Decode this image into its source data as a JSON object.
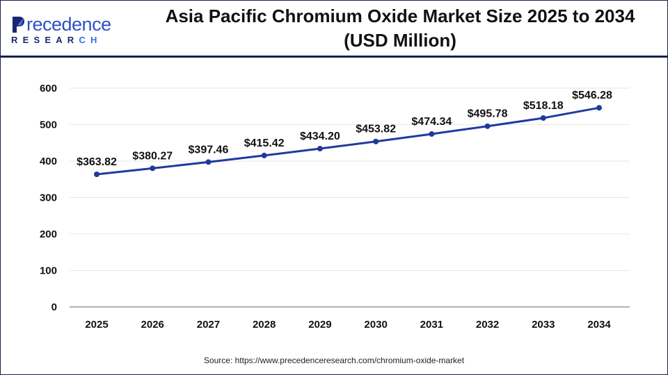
{
  "header": {
    "logo_text": "Precedence RESEARCH",
    "title_line1": "Asia Pacific Chromium Oxide Market Size 2025 to 2034",
    "title_line2": "(USD Million)"
  },
  "source": "Source: https://www.precedenceresearch.com/chromium-oxide-market",
  "colors": {
    "line": "#1f3a9e",
    "frame": "#1a1f4e",
    "grid": "#e6e6e6"
  },
  "chart_data": {
    "type": "line",
    "title": "Asia Pacific Chromium Oxide Market Size 2025 to 2034 (USD Million)",
    "categories": [
      "2025",
      "2026",
      "2027",
      "2028",
      "2029",
      "2030",
      "2031",
      "2032",
      "2033",
      "2034"
    ],
    "values": [
      363.82,
      380.27,
      397.46,
      415.42,
      434.2,
      453.82,
      474.34,
      495.78,
      518.18,
      546.28
    ],
    "data_labels": [
      "$363.82",
      "$380.27",
      "$397.46",
      "$415.42",
      "$434.20",
      "$453.82",
      "$474.34",
      "$495.78",
      "$518.18",
      "$546.28"
    ],
    "ylim": [
      0,
      600
    ],
    "yticks": [
      0,
      100,
      200,
      300,
      400,
      500,
      600
    ],
    "xlabel": "",
    "ylabel": "",
    "grid": true,
    "legend": "none"
  }
}
